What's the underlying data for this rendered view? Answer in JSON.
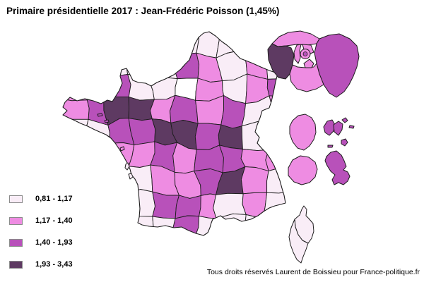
{
  "title": "Primaire présidentielle 2017 : Jean-Frédéric Poisson (1,45%)",
  "footer": "Tous droits réservés Laurent de Boissieu pour France-politique.fr",
  "legend": {
    "items": [
      {
        "label": "0,81 - 1,17",
        "color": "#f9edf7"
      },
      {
        "label": "1,17 - 1,40",
        "color": "#ee8ce2"
      },
      {
        "label": "1,40 - 1,93",
        "color": "#b851ba"
      },
      {
        "label": "1,93 - 3,43",
        "color": "#5e3a62"
      }
    ]
  },
  "map": {
    "border_color": "#1c1c1c",
    "sea_color": "#ffffff",
    "idf_hole_color": "#ffffff",
    "grid_categories": [
      [
        0,
        0,
        0,
        0,
        0,
        0,
        0,
        0,
        0,
        0
      ],
      [
        0,
        0,
        0,
        0,
        0,
        2,
        1,
        0,
        1,
        0
      ],
      [
        1,
        2,
        2,
        0,
        0,
        4,
        1,
        0,
        1,
        2
      ],
      [
        1,
        2,
        3,
        3,
        1,
        2,
        1,
        2,
        0,
        1
      ],
      [
        0,
        0,
        2,
        2,
        3,
        3,
        2,
        3,
        0,
        0
      ],
      [
        0,
        0,
        1,
        1,
        2,
        1,
        2,
        2,
        1,
        1
      ],
      [
        0,
        0,
        0,
        0,
        1,
        1,
        2,
        3,
        1,
        0
      ],
      [
        0,
        0,
        0,
        0,
        2,
        2,
        1,
        0,
        1,
        0
      ],
      [
        0,
        0,
        0,
        0,
        0,
        2,
        0,
        0,
        0,
        0
      ]
    ],
    "idf_inset": {
      "val_doise": 1,
      "yvelines": 3,
      "seine_et_marne": 2,
      "essonne": 1,
      "hauts_de_seine": 1,
      "seine_saint_denis": 1,
      "val_de_marne": 1,
      "paris": 1,
      "paris_center": 2
    },
    "corsica": {
      "haute_corse": 0,
      "corse_du_sud": 0
    },
    "overseas": {
      "guyane": 1,
      "guadeloupe": 2,
      "reunion": 1,
      "martinique": 2
    },
    "coastal_islands": [
      2,
      2,
      1,
      0,
      0
    ]
  }
}
